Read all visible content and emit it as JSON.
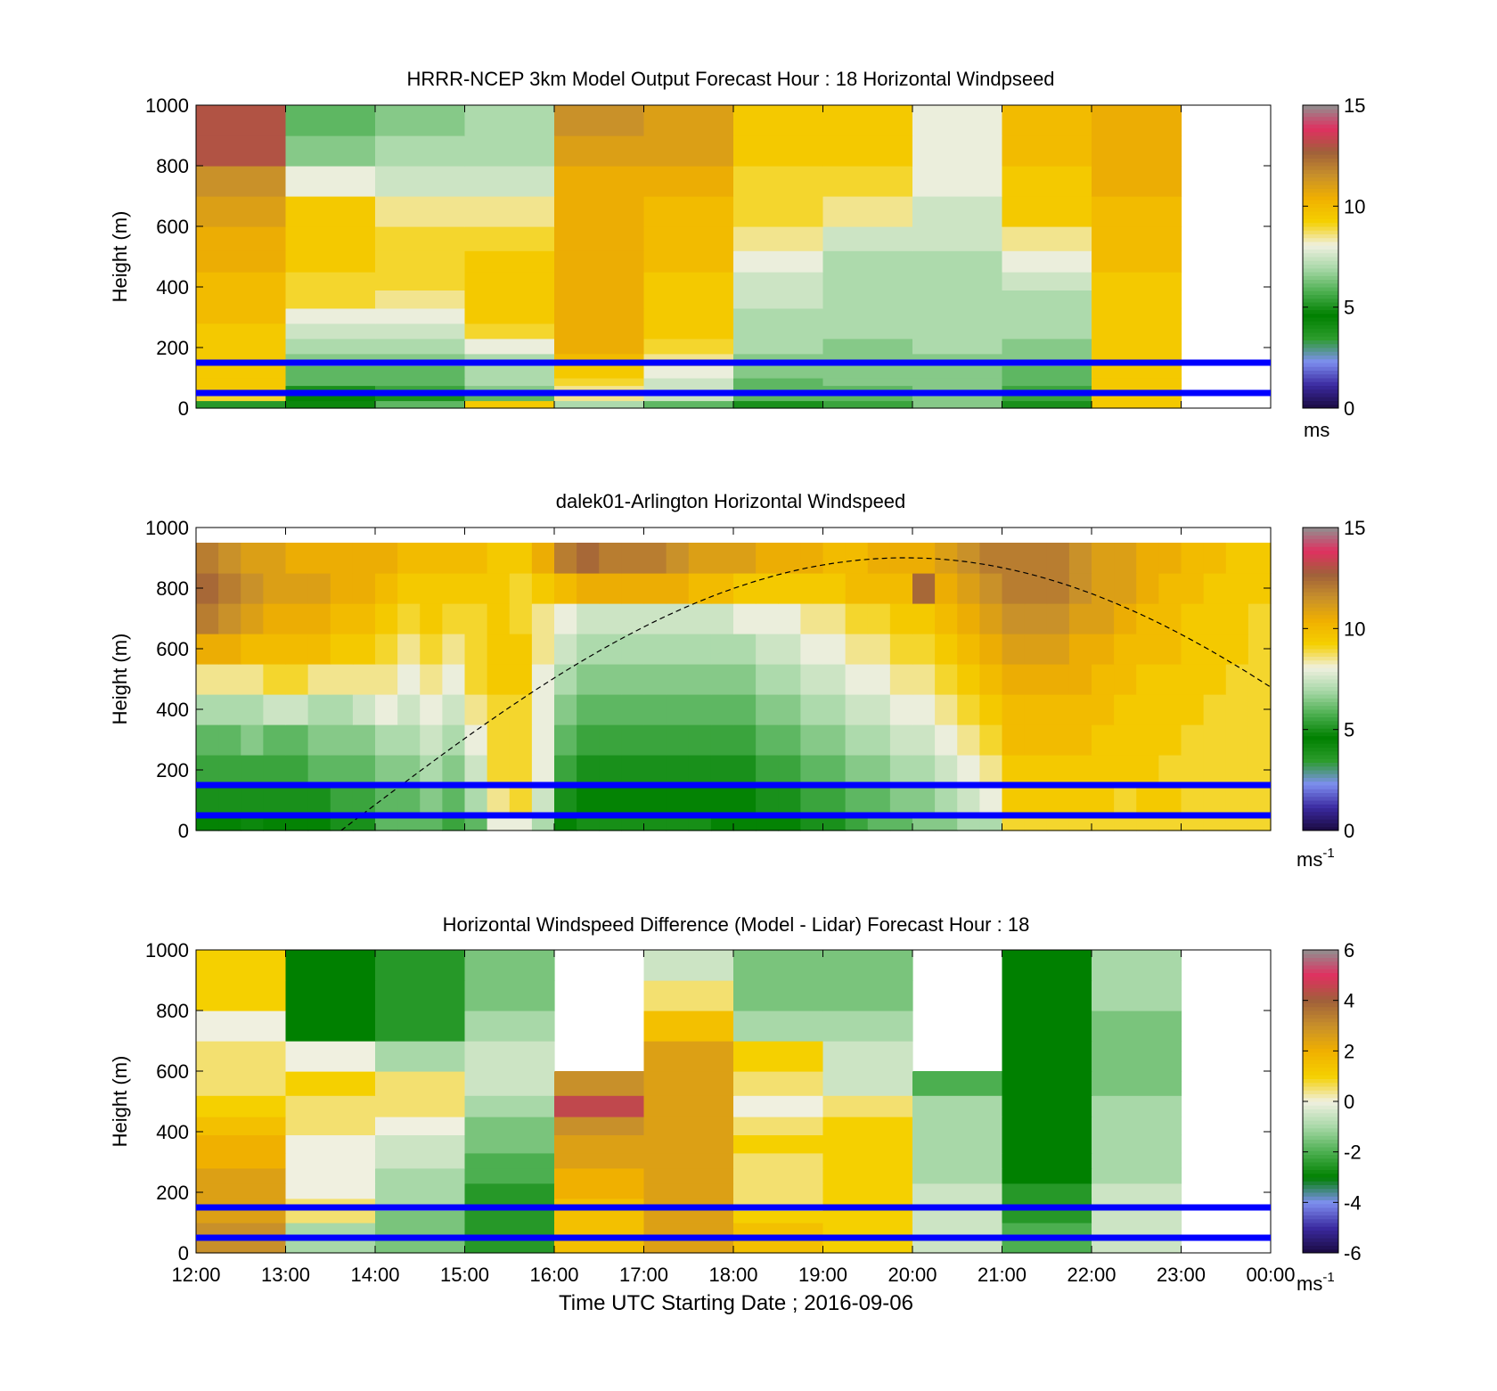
{
  "figure": {
    "x_tick_labels": [
      "12:00",
      "13:00",
      "14:00",
      "15:00",
      "16:00",
      "17:00",
      "18:00",
      "19:00",
      "20:00",
      "21:00",
      "22:00",
      "23:00",
      "00:00"
    ],
    "x_axis_label": "Time UTC  Starting Date ; 2016-09-06"
  },
  "colors": {
    "highlight_line": "#0000ff",
    "terminator_curve": "#000000",
    "speed_colormap": [
      "#1a0a40",
      "#3b2aa0",
      "#7e8ff0",
      "#2c9c2c",
      "#008000",
      "#4caf50",
      "#a8d8a8",
      "#f0f0e0",
      "#f5d000",
      "#f0b000",
      "#c8902a",
      "#a0603a",
      "#e03060",
      "#909090"
    ],
    "diff_colormap": [
      "#1a0a40",
      "#3b2aa0",
      "#7e8ff0",
      "#008000",
      "#4caf50",
      "#a8d8a8",
      "#f0f0e0",
      "#f5d000",
      "#f0b000",
      "#c8902a",
      "#a0603a",
      "#e03060",
      "#909090"
    ]
  },
  "chart_data": [
    {
      "type": "heatmap",
      "title": "HRRR-NCEP 3km Model Output   Forecast Hour : 18 Horizontal Windpseed",
      "ylabel": "Height (m)",
      "ylim": [
        0,
        1000
      ],
      "y_ticks": [
        "0",
        "200",
        "400",
        "600",
        "800",
        "1000"
      ],
      "colorbar": {
        "ticks": [
          "0",
          "5",
          "10",
          "15"
        ],
        "unit_base": "ms",
        "unit_exp": "",
        "range": [
          0,
          15
        ]
      },
      "highlight_heights_m": [
        50,
        150
      ],
      "x_hours_start": [
        "12:00",
        "13:00",
        "14:00",
        "15:00",
        "16:00",
        "17:00",
        "18:00",
        "19:00",
        "20:00",
        "21:00",
        "22:00"
      ],
      "height_levels_m": [
        25,
        50,
        75,
        100,
        140,
        180,
        230,
        280,
        330,
        390,
        450,
        520,
        600,
        700,
        800,
        900,
        1000
      ],
      "values_ms": [
        [
          5.2,
          4.8,
          6.0,
          9.5,
          7.0,
          6.0,
          5.0,
          5.5,
          6.5,
          5.0,
          9.5
        ],
        [
          9.0,
          4.5,
          5.0,
          6.0,
          8.5,
          7.5,
          6.0,
          6.0,
          6.5,
          5.5,
          9.5
        ],
        [
          9.5,
          5.0,
          5.5,
          6.5,
          8.5,
          7.5,
          6.0,
          6.0,
          6.5,
          5.5,
          9.5
        ],
        [
          9.5,
          6.0,
          6.0,
          7.0,
          9.0,
          7.5,
          6.0,
          6.5,
          6.5,
          6.0,
          9.5
        ],
        [
          9.5,
          6.0,
          6.0,
          7.0,
          9.5,
          8.0,
          6.5,
          6.5,
          6.5,
          6.0,
          9.5
        ],
        [
          9.5,
          6.5,
          6.5,
          7.0,
          10.0,
          8.5,
          6.5,
          6.5,
          6.5,
          6.5,
          9.5
        ],
        [
          9.5,
          7.0,
          7.0,
          8.0,
          10.5,
          9.0,
          7.0,
          6.5,
          7.0,
          6.5,
          9.5
        ],
        [
          9.5,
          7.5,
          7.5,
          9.0,
          10.5,
          9.5,
          7.0,
          7.0,
          7.0,
          7.0,
          9.5
        ],
        [
          10.0,
          8.0,
          8.0,
          9.5,
          10.5,
          9.5,
          7.0,
          7.0,
          7.0,
          7.0,
          9.5
        ],
        [
          10.0,
          9.0,
          8.5,
          9.5,
          10.5,
          9.5,
          7.5,
          7.0,
          7.0,
          7.0,
          9.5
        ],
        [
          10.0,
          9.0,
          9.0,
          9.5,
          10.5,
          9.5,
          7.5,
          7.0,
          7.0,
          7.5,
          9.5
        ],
        [
          10.5,
          9.5,
          9.0,
          9.5,
          10.5,
          10.0,
          8.0,
          7.0,
          7.0,
          8.0,
          10.0
        ],
        [
          10.5,
          9.5,
          9.0,
          9.0,
          10.5,
          10.0,
          8.5,
          7.5,
          7.5,
          8.5,
          10.0
        ],
        [
          11.0,
          9.5,
          8.5,
          8.5,
          10.5,
          10.0,
          9.0,
          8.5,
          7.5,
          9.5,
          10.0
        ],
        [
          11.5,
          8.0,
          7.5,
          7.5,
          10.5,
          10.5,
          9.0,
          9.0,
          8.0,
          9.5,
          10.5
        ],
        [
          13.0,
          6.5,
          7.0,
          7.0,
          11.0,
          11.0,
          9.5,
          9.5,
          8.0,
          10.0,
          10.5
        ],
        [
          13.0,
          6.0,
          6.5,
          7.0,
          11.5,
          11.0,
          9.5,
          9.5,
          8.0,
          10.0,
          10.5
        ]
      ]
    },
    {
      "type": "heatmap",
      "title": "dalek01-Arlington  Horizontal Windspeed",
      "ylabel": "Height (m)",
      "ylim": [
        0,
        1000
      ],
      "y_ticks": [
        "0",
        "200",
        "400",
        "600",
        "800",
        "1000"
      ],
      "colorbar": {
        "ticks": [
          "0",
          "5",
          "10",
          "15"
        ],
        "unit_base": "ms",
        "unit_exp": "-1",
        "range": [
          0,
          15
        ]
      },
      "highlight_heights_m": [
        50,
        150
      ],
      "x_hours_start": [
        "12:00",
        "12:15",
        "12:30",
        "12:45",
        "13:00",
        "13:15",
        "13:30",
        "13:45",
        "14:00",
        "14:15",
        "14:30",
        "14:45",
        "15:00",
        "15:15",
        "15:30",
        "15:45",
        "16:00",
        "16:15",
        "16:30",
        "16:45",
        "17:00",
        "17:15",
        "17:30",
        "17:45",
        "18:00",
        "18:15",
        "18:30",
        "18:45",
        "19:00",
        "19:15",
        "19:30",
        "19:45",
        "20:00",
        "20:15",
        "20:30",
        "20:45",
        "21:00",
        "21:15",
        "21:30",
        "21:45",
        "22:00",
        "22:15",
        "22:30",
        "22:45",
        "23:00",
        "23:15",
        "23:30",
        "23:45"
      ],
      "height_levels_m": [
        50,
        150,
        250,
        350,
        450,
        550,
        650,
        750,
        850,
        950
      ],
      "values_ms": [
        [
          4.5,
          4.5,
          4.8,
          4.5,
          4.5,
          4.5,
          5.0,
          5.0,
          6.0,
          6.0,
          6.0,
          5.5,
          6.0,
          8.0,
          8.0,
          7.0,
          4.5,
          4.0,
          4.0,
          4.0,
          4.0,
          4.0,
          4.0,
          4.5,
          4.5,
          4.5,
          4.5,
          5.0,
          5.0,
          5.5,
          6.0,
          6.0,
          6.5,
          6.5,
          7.0,
          7.0,
          9.0,
          9.0,
          9.0,
          9.0,
          9.0,
          9.0,
          9.0,
          9.0,
          9.0,
          9.0,
          9.0,
          9.0
        ],
        [
          5.0,
          5.0,
          5.0,
          5.0,
          5.0,
          5.0,
          5.5,
          5.5,
          6.0,
          6.0,
          6.5,
          6.0,
          7.0,
          8.5,
          9.0,
          7.5,
          5.0,
          4.5,
          4.5,
          4.5,
          4.5,
          4.5,
          4.5,
          4.5,
          4.5,
          5.0,
          5.0,
          5.5,
          5.5,
          6.0,
          6.0,
          6.5,
          6.5,
          7.0,
          7.5,
          8.0,
          9.5,
          9.5,
          9.5,
          9.5,
          9.5,
          9.0,
          9.5,
          9.5,
          9.0,
          9.0,
          9.0,
          9.0
        ],
        [
          5.5,
          5.5,
          5.5,
          5.5,
          5.5,
          6.0,
          6.0,
          6.0,
          6.5,
          6.5,
          7.0,
          6.5,
          7.5,
          9.0,
          9.0,
          8.0,
          5.5,
          5.0,
          5.0,
          5.0,
          5.0,
          5.0,
          5.0,
          5.0,
          5.0,
          5.5,
          5.5,
          6.0,
          6.0,
          6.5,
          6.5,
          7.0,
          7.0,
          7.5,
          8.0,
          8.5,
          9.5,
          9.5,
          9.5,
          9.5,
          9.5,
          9.5,
          9.5,
          9.0,
          9.0,
          9.0,
          9.0,
          9.0
        ],
        [
          6.0,
          6.0,
          6.5,
          6.0,
          6.0,
          6.5,
          6.5,
          6.5,
          7.0,
          7.0,
          7.5,
          7.0,
          8.0,
          9.0,
          9.0,
          8.0,
          6.0,
          5.5,
          5.5,
          5.5,
          5.5,
          5.5,
          5.5,
          5.5,
          5.5,
          6.0,
          6.0,
          6.5,
          6.5,
          7.0,
          7.0,
          7.5,
          7.5,
          8.0,
          8.5,
          9.0,
          10.0,
          10.0,
          10.0,
          10.0,
          9.5,
          9.5,
          9.5,
          9.5,
          9.0,
          9.0,
          9.0,
          9.0
        ],
        [
          7.0,
          7.0,
          7.0,
          7.5,
          7.5,
          7.0,
          7.0,
          7.5,
          8.0,
          7.5,
          8.0,
          7.5,
          8.5,
          9.0,
          9.0,
          8.0,
          6.5,
          6.0,
          6.0,
          6.0,
          6.0,
          6.0,
          6.0,
          6.0,
          6.0,
          6.5,
          6.5,
          7.0,
          7.0,
          7.5,
          7.5,
          8.0,
          8.0,
          8.5,
          9.0,
          9.5,
          10.0,
          10.0,
          10.0,
          10.0,
          10.0,
          9.5,
          9.5,
          9.5,
          9.5,
          9.0,
          9.0,
          9.0
        ],
        [
          8.5,
          8.5,
          8.5,
          9.0,
          9.0,
          8.5,
          8.5,
          8.5,
          8.5,
          8.0,
          8.5,
          8.0,
          9.0,
          9.5,
          9.5,
          8.0,
          7.0,
          6.5,
          6.5,
          6.5,
          6.5,
          6.5,
          6.5,
          6.5,
          6.5,
          7.0,
          7.0,
          7.5,
          7.5,
          8.0,
          8.0,
          8.5,
          8.5,
          9.0,
          9.5,
          10.0,
          10.5,
          10.5,
          10.5,
          10.5,
          10.0,
          10.0,
          9.5,
          9.5,
          9.5,
          9.5,
          9.0,
          9.0
        ],
        [
          10.5,
          10.5,
          10.0,
          10.0,
          10.0,
          10.0,
          9.5,
          9.5,
          9.0,
          8.5,
          9.0,
          8.5,
          9.0,
          9.5,
          9.5,
          8.5,
          7.5,
          7.0,
          7.0,
          7.0,
          7.0,
          7.0,
          7.0,
          7.0,
          7.0,
          7.5,
          7.5,
          8.0,
          8.0,
          8.5,
          8.5,
          9.0,
          9.0,
          9.5,
          10.0,
          10.5,
          11.0,
          11.0,
          11.0,
          10.5,
          10.5,
          10.0,
          10.0,
          10.0,
          9.5,
          9.5,
          9.5,
          9.0
        ],
        [
          12.0,
          11.5,
          11.0,
          10.5,
          10.5,
          10.5,
          10.0,
          10.0,
          9.5,
          9.0,
          9.5,
          9.0,
          9.0,
          9.5,
          9.0,
          8.5,
          8.0,
          7.5,
          7.5,
          7.5,
          7.5,
          7.5,
          7.5,
          7.5,
          8.0,
          8.0,
          8.0,
          8.5,
          8.5,
          9.0,
          9.0,
          9.5,
          9.5,
          10.0,
          10.5,
          11.0,
          11.5,
          11.5,
          11.5,
          11.0,
          11.0,
          10.5,
          10.0,
          10.0,
          9.5,
          9.5,
          9.5,
          9.0
        ],
        [
          12.5,
          12.0,
          11.5,
          11.0,
          11.0,
          11.0,
          10.5,
          10.5,
          10.0,
          9.5,
          9.5,
          9.5,
          9.5,
          9.5,
          9.0,
          9.5,
          10.0,
          10.5,
          10.5,
          10.5,
          10.5,
          10.5,
          10.0,
          10.0,
          9.5,
          9.5,
          9.5,
          9.5,
          9.5,
          10.0,
          10.0,
          10.0,
          12.5,
          10.5,
          11.0,
          11.5,
          12.0,
          12.0,
          12.0,
          11.5,
          11.0,
          11.0,
          10.5,
          10.0,
          10.0,
          9.5,
          9.5,
          9.5
        ],
        [
          12.0,
          11.5,
          11.0,
          11.0,
          10.5,
          10.5,
          10.5,
          10.5,
          10.5,
          10.0,
          10.0,
          10.0,
          10.0,
          9.5,
          9.5,
          10.5,
          12.0,
          12.5,
          12.0,
          12.0,
          12.0,
          11.5,
          11.0,
          11.0,
          11.0,
          10.5,
          10.5,
          10.5,
          10.0,
          10.0,
          10.5,
          10.5,
          10.5,
          11.0,
          11.5,
          12.0,
          12.0,
          12.0,
          12.0,
          11.5,
          11.0,
          11.0,
          10.5,
          10.5,
          10.0,
          10.0,
          9.5,
          9.5
        ]
      ]
    },
    {
      "type": "heatmap",
      "title": "Horizontal Windspeed Difference (Model - Lidar) Forecast Hour : 18",
      "ylabel": "Height (m)",
      "ylim": [
        0,
        1000
      ],
      "y_ticks": [
        "0",
        "200",
        "400",
        "600",
        "800",
        "1000"
      ],
      "colorbar": {
        "ticks": [
          "-6",
          "-4",
          "-2",
          "0",
          "2",
          "4",
          "6"
        ],
        "unit_base": "ms",
        "unit_exp": "-1",
        "range": [
          -6,
          6
        ]
      },
      "highlight_heights_m": [
        50,
        150
      ],
      "x_hours_start": [
        "12:00",
        "13:00",
        "14:00",
        "15:00",
        "16:00",
        "17:00",
        "18:00",
        "19:00",
        "20:00",
        "21:00",
        "22:00"
      ],
      "height_levels_m": [
        25,
        50,
        75,
        100,
        140,
        180,
        230,
        280,
        330,
        390,
        450,
        520,
        600,
        700,
        800,
        900,
        1000
      ],
      "values_ms": [
        [
          3.0,
          -1.0,
          -1.5,
          -2.5,
          1.5,
          2.5,
          1.5,
          1.0,
          -0.5,
          -2.0,
          -0.5
        ],
        [
          3.0,
          -1.0,
          -1.5,
          -2.5,
          1.5,
          2.5,
          1.5,
          1.0,
          -0.5,
          -2.0,
          -0.5
        ],
        [
          3.0,
          -1.0,
          -1.5,
          -2.5,
          1.5,
          2.5,
          1.5,
          1.0,
          -0.5,
          -2.0,
          -0.5
        ],
        [
          3.0,
          -1.0,
          -1.5,
          -2.5,
          1.5,
          2.5,
          1.5,
          1.0,
          -0.5,
          -2.0,
          -0.5
        ],
        [
          2.5,
          0.5,
          -1.5,
          -2.5,
          1.5,
          2.5,
          1.0,
          1.0,
          -0.5,
          -2.5,
          -0.5
        ],
        [
          2.5,
          0.5,
          -1.0,
          -2.5,
          1.5,
          2.5,
          0.5,
          1.0,
          -0.5,
          -2.5,
          -0.5
        ],
        [
          2.5,
          0.0,
          -1.0,
          -2.5,
          2.0,
          2.5,
          0.5,
          1.0,
          -0.5,
          -2.5,
          -0.5
        ],
        [
          2.5,
          0.0,
          -1.0,
          -2.0,
          2.0,
          2.5,
          0.5,
          1.0,
          -1.0,
          -3.0,
          -1.0
        ],
        [
          2.0,
          0.0,
          -0.5,
          -2.0,
          2.5,
          2.5,
          0.5,
          1.0,
          -1.0,
          -3.0,
          -1.0
        ],
        [
          2.0,
          0.0,
          -0.5,
          -1.5,
          2.5,
          2.5,
          1.0,
          1.0,
          -1.0,
          -3.0,
          -1.0
        ],
        [
          1.5,
          0.5,
          0.0,
          -1.5,
          3.0,
          2.5,
          0.5,
          1.0,
          -1.0,
          -3.0,
          -1.0
        ],
        [
          1.0,
          0.5,
          0.5,
          -1.0,
          4.5,
          2.5,
          0.0,
          0.5,
          -1.0,
          -3.0,
          -1.0
        ],
        [
          0.5,
          1.0,
          0.5,
          -0.5,
          3.0,
          2.5,
          0.5,
          -0.5,
          -2.0,
          -3.0,
          -1.5
        ],
        [
          0.5,
          0.0,
          -1.0,
          -0.5,
          null,
          2.5,
          1.0,
          -0.5,
          null,
          -3.0,
          -1.5
        ],
        [
          0.0,
          -3.0,
          -2.5,
          -1.0,
          null,
          1.5,
          -1.0,
          -1.0,
          null,
          -3.0,
          -1.5
        ],
        [
          1.0,
          -3.0,
          -2.5,
          -1.5,
          null,
          0.5,
          -1.5,
          -1.5,
          null,
          -3.0,
          -1.0
        ],
        [
          1.0,
          -3.0,
          -2.5,
          -1.5,
          null,
          -0.5,
          -1.5,
          -1.5,
          null,
          -3.0,
          -1.0
        ]
      ]
    }
  ]
}
